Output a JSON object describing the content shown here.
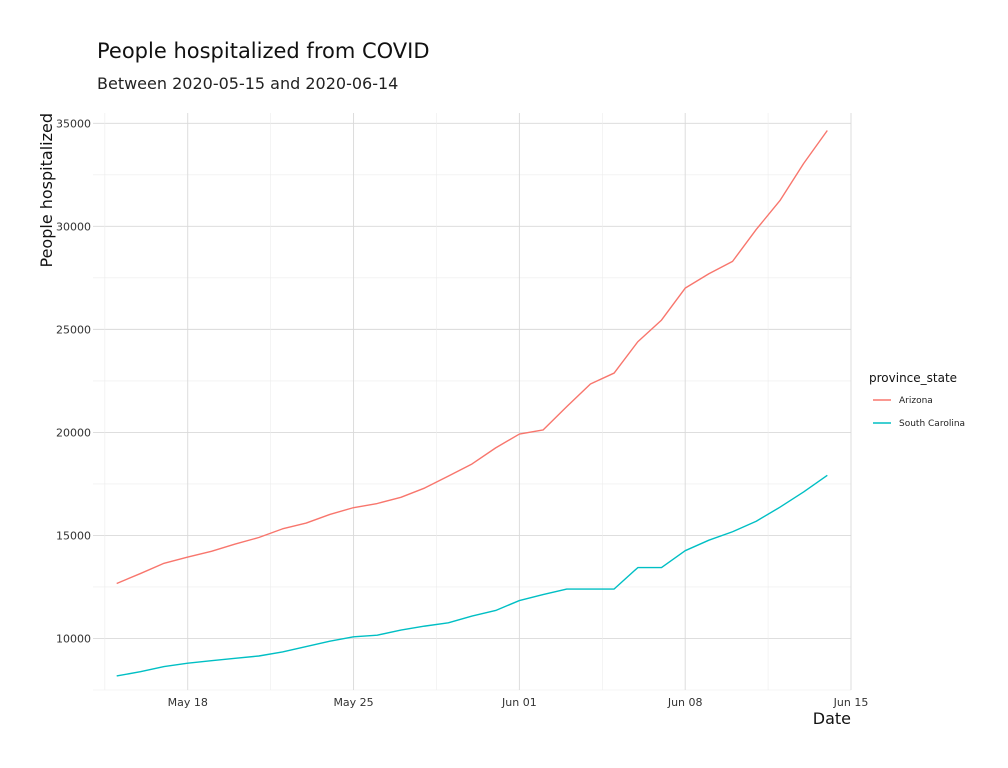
{
  "chart_data": {
    "type": "line",
    "title": "People hospitalized from COVID",
    "subtitle": "Between 2020-05-15 and 2020-06-14",
    "xlabel": "Date",
    "ylabel": "People hospitalized",
    "x": [
      "2020-05-15",
      "2020-05-16",
      "2020-05-17",
      "2020-05-18",
      "2020-05-19",
      "2020-05-20",
      "2020-05-21",
      "2020-05-22",
      "2020-05-23",
      "2020-05-24",
      "2020-05-25",
      "2020-05-26",
      "2020-05-27",
      "2020-05-28",
      "2020-05-29",
      "2020-05-30",
      "2020-05-31",
      "2020-06-01",
      "2020-06-02",
      "2020-06-03",
      "2020-06-04",
      "2020-06-05",
      "2020-06-06",
      "2020-06-07",
      "2020-06-08",
      "2020-06-09",
      "2020-06-10",
      "2020-06-11",
      "2020-06-12",
      "2020-06-13",
      "2020-06-14"
    ],
    "xlim": [
      "2020-05-14",
      "2020-06-15"
    ],
    "ylim": [
      7500,
      35500
    ],
    "x_ticks": [
      {
        "date": "2020-05-18",
        "label": "May 18"
      },
      {
        "date": "2020-05-25",
        "label": "May 25"
      },
      {
        "date": "2020-06-01",
        "label": "Jun 01"
      },
      {
        "date": "2020-06-08",
        "label": "Jun 08"
      },
      {
        "date": "2020-06-15",
        "label": "Jun 15"
      }
    ],
    "y_ticks": [
      10000,
      15000,
      20000,
      25000,
      30000,
      35000
    ],
    "grid": true,
    "legend": {
      "title": "province_state",
      "position": "right"
    },
    "series": [
      {
        "name": "Arizona",
        "color": "#F8766D",
        "values": [
          12670,
          13150,
          13650,
          13950,
          14230,
          14580,
          14900,
          15320,
          15600,
          16020,
          16350,
          16550,
          16850,
          17300,
          17880,
          18470,
          19250,
          19920,
          20120,
          21250,
          22350,
          22880,
          24400,
          25450,
          27000,
          27700,
          28300,
          29850,
          31250,
          33050,
          34650
        ]
      },
      {
        "name": "South Carolina",
        "color": "#00BFC4",
        "values": [
          8180,
          8390,
          8640,
          8800,
          8920,
          9040,
          9150,
          9350,
          9610,
          9870,
          10080,
          10160,
          10410,
          10600,
          10760,
          11090,
          11360,
          11840,
          12130,
          12400,
          12400,
          12400,
          13440,
          13440,
          14260,
          14770,
          15180,
          15690,
          16370,
          17110,
          17920
        ]
      }
    ]
  }
}
